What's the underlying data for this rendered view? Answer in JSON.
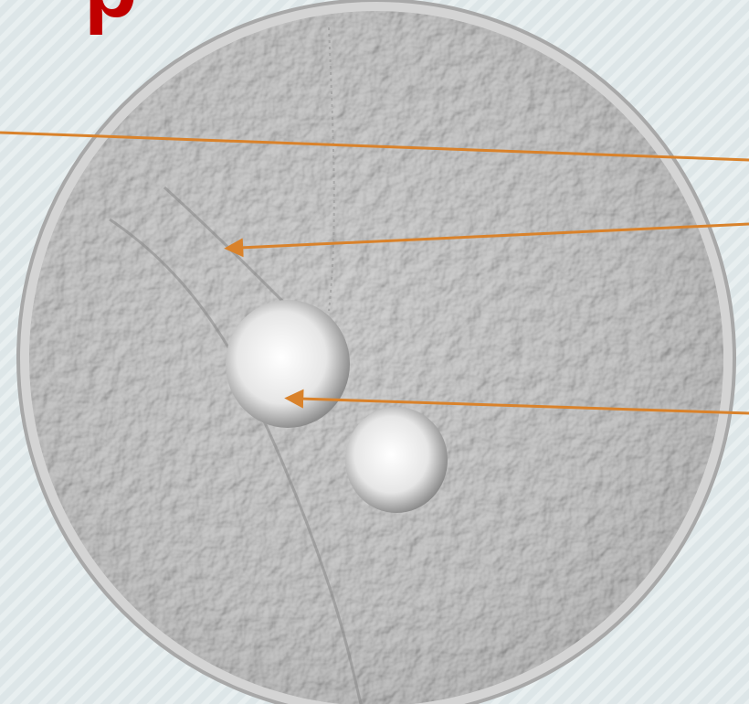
{
  "heading": {
    "text": "p"
  }
}
